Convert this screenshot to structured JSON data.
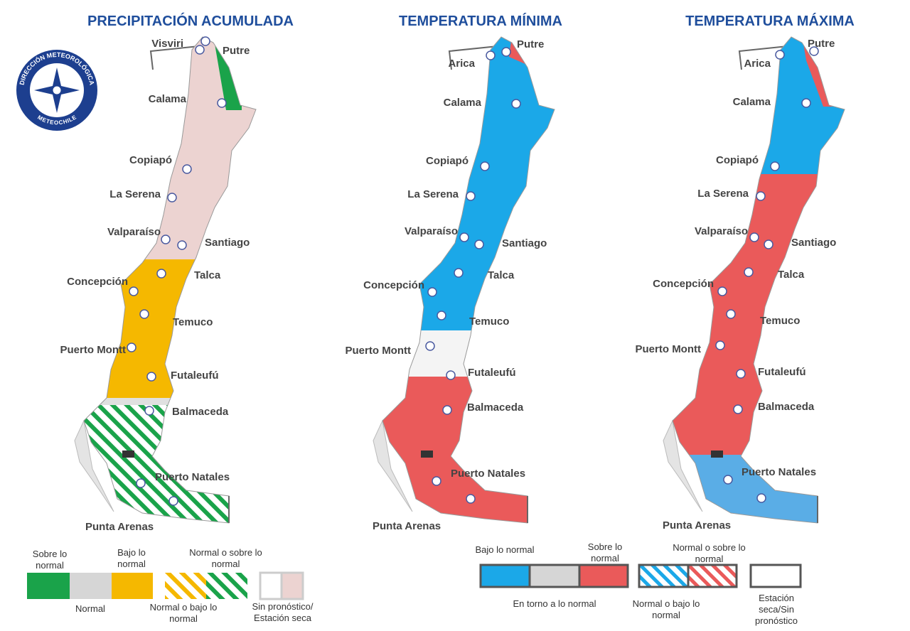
{
  "logo": {
    "top": "DIRECCIÓN METEOROLÓGICA",
    "bottom": "METEOCHILE"
  },
  "maps": [
    {
      "title": "PRECIPITACIÓN ACUMULADA",
      "cities": [
        "Visviri",
        "Putre",
        "Calama",
        "Copiapó",
        "La Serena",
        "Valparaíso",
        "Santiago",
        "Concepción",
        "Talca",
        "Temuco",
        "Puerto Montt",
        "Futaleufú",
        "Balmaceda",
        "Puerto Natales",
        "Punta Arenas"
      ]
    },
    {
      "title": "TEMPERATURA MÍNIMA",
      "cities": [
        "Putre",
        "Arica",
        "Calama",
        "Copiapó",
        "La Serena",
        "Valparaíso",
        "Santiago",
        "Concepción",
        "Talca",
        "Temuco",
        "Puerto Montt",
        "Futaleufú",
        "Balmaceda",
        "Puerto Natales",
        "Punta Arenas"
      ]
    },
    {
      "title": "TEMPERATURA MÁXIMA",
      "cities": [
        "Putre",
        "Arica",
        "Calama",
        "Copiapó",
        "La Serena",
        "Valparaíso",
        "Santiago",
        "Concepción",
        "Talca",
        "Temuco",
        "Puerto Montt",
        "Futaleufú",
        "Balmaceda",
        "Puerto Natales",
        "Punta Arenas"
      ]
    }
  ],
  "precipitation_legend": [
    "Sobre lo normal",
    "Normal",
    "Bajo lo normal",
    "Normal o bajo lo normal",
    "Normal o sobre lo normal",
    "Sin pronóstico/ Estación seca"
  ],
  "temperature_legend": [
    "Bajo lo normal",
    "En torno a lo normal",
    "Sobre lo normal",
    "Normal o bajo lo normal",
    "Normal o sobre lo normal",
    "Estación seca/Sin pronóstico"
  ]
}
